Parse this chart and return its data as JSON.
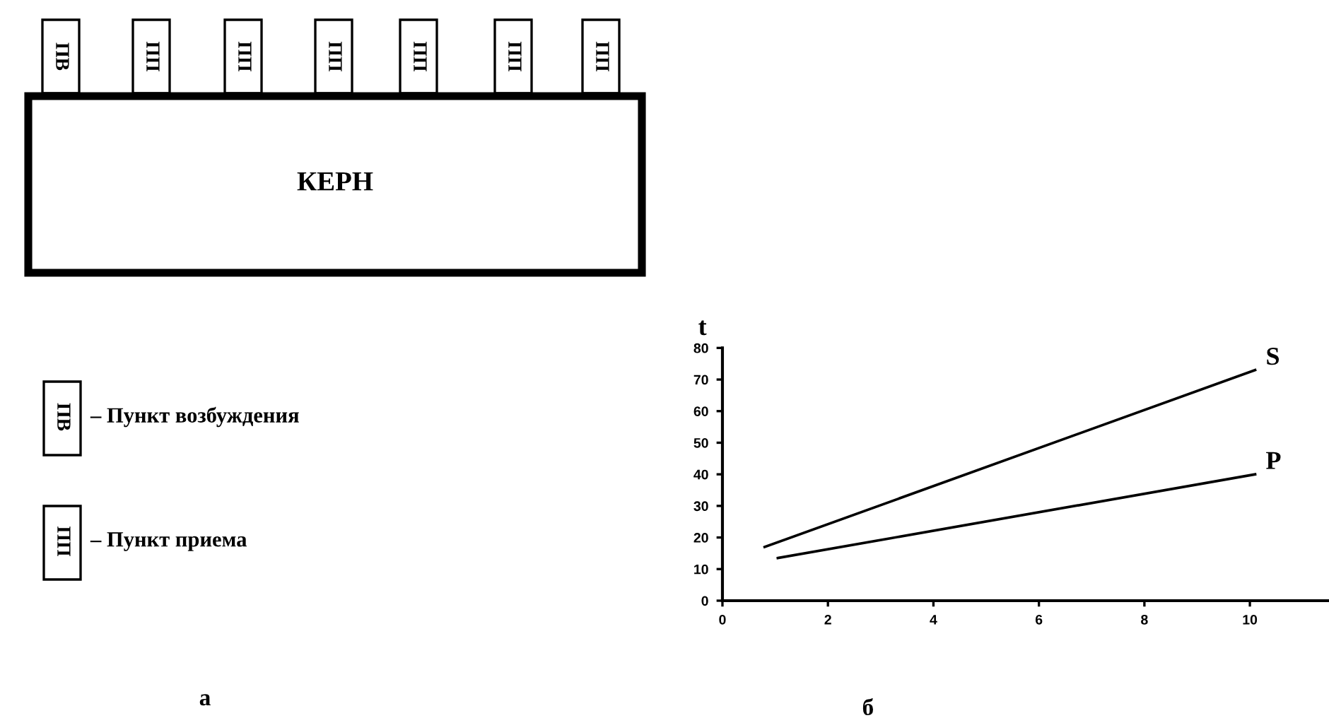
{
  "chart_data": [
    {
      "type": "other",
      "annotations": [
        "ПВ",
        "ПП",
        "ПП",
        "ПП",
        "ПП",
        "ПП",
        "ПП",
        "КЕРН",
        "ПВ",
        "– Пункт возбуждения",
        "ПП",
        "– Пункт приема",
        "а"
      ]
    },
    {
      "type": "line",
      "ylabel": "t",
      "xlim": [
        0,
        11.5
      ],
      "ylim": [
        0,
        80
      ],
      "xticks": [
        0,
        2,
        4,
        6,
        8,
        10
      ],
      "yticks": [
        0,
        10,
        20,
        30,
        40,
        50,
        60,
        70,
        80
      ],
      "grid": false,
      "legend": false,
      "marker": "none",
      "line_style": "solid",
      "series": [
        {
          "name": "S",
          "color": "#000000",
          "x": [
            0.8,
            10.1
          ],
          "values": [
            17,
            73
          ]
        },
        {
          "name": "P",
          "color": "#000000",
          "x": [
            1.05,
            10.1
          ],
          "values": [
            13.5,
            40
          ]
        }
      ],
      "annotations": [
        "б"
      ]
    }
  ]
}
